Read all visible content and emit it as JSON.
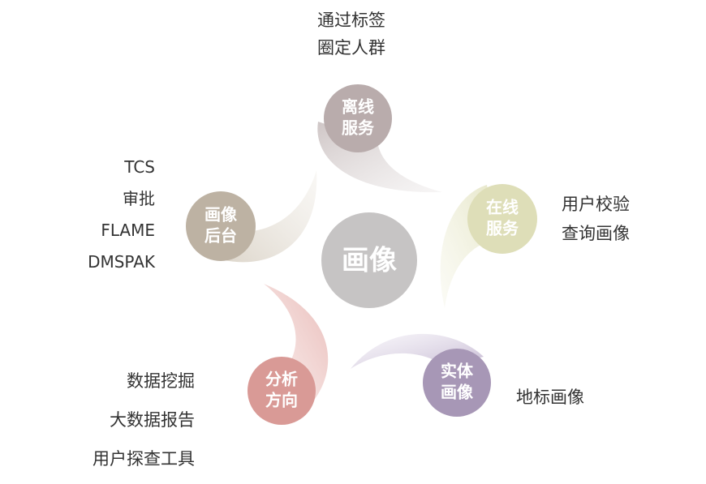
{
  "center": {
    "label": "画像",
    "color": "#c6c4c4"
  },
  "nodes": [
    {
      "id": "offline",
      "line1": "离线",
      "line2": "服务",
      "color": "#b9acac",
      "tail_color": "#d9d3d3",
      "notes": [
        "通过标签",
        "圈定人群"
      ]
    },
    {
      "id": "online",
      "line1": "在线",
      "line2": "服务",
      "color": "#dedeb8",
      "tail_color": "#ededd8",
      "notes": [
        "用户校验",
        "查询画像"
      ]
    },
    {
      "id": "entity",
      "line1": "实体",
      "line2": "画像",
      "color": "#a797b6",
      "tail_color": "#d6cee0",
      "notes": [
        "地标画像"
      ]
    },
    {
      "id": "analysis",
      "line1": "分析",
      "line2": "方向",
      "color": "#d99a96",
      "tail_color": "#f0d6d4",
      "notes": [
        "数据挖掘",
        "大数据报告",
        "用户探查工具"
      ]
    },
    {
      "id": "backend",
      "line1": "画像",
      "line2": "后台",
      "color": "#bdb2a3",
      "tail_color": "#e3ddd4",
      "notes": [
        "TCS",
        "审批",
        "FLAME",
        "DMSPAK"
      ]
    }
  ]
}
